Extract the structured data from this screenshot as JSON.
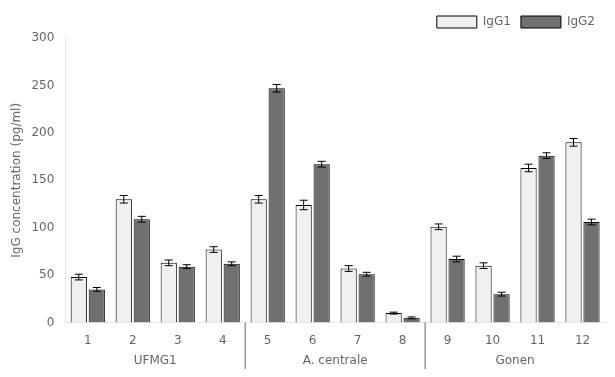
{
  "chart_data": {
    "type": "bar",
    "categories": [
      "1",
      "2",
      "3",
      "4",
      "5",
      "6",
      "7",
      "8",
      "9",
      "10",
      "11",
      "12"
    ],
    "series": [
      {
        "name": "IgG1",
        "color": "#f0f0f0",
        "values": [
          48,
          130,
          63,
          77,
          130,
          124,
          57,
          10,
          101,
          60,
          163,
          190
        ],
        "errors": [
          3,
          4,
          3,
          3,
          4,
          5,
          3,
          1,
          3,
          3,
          4,
          4
        ]
      },
      {
        "name": "IgG2",
        "color": "#707070",
        "values": [
          35,
          109,
          59,
          62,
          247,
          167,
          51,
          5,
          67,
          30,
          176,
          106
        ],
        "errors": [
          2,
          3,
          2,
          2,
          4,
          3,
          2,
          1,
          3,
          2,
          3,
          3
        ]
      }
    ],
    "ylabel": "IgG concentration (pg/ml)",
    "ylim": [
      0,
      300
    ],
    "yticks": [
      0,
      50,
      100,
      150,
      200,
      250,
      300
    ],
    "grid": false,
    "legend": "upper right",
    "annotations": [
      {
        "text": "UFMG1",
        "categories": [
          "1",
          "2",
          "3",
          "4"
        ]
      },
      {
        "text": "A. centrale",
        "categories": [
          "5",
          "6",
          "7",
          "8"
        ]
      },
      {
        "text": "Gonen",
        "categories": [
          "9",
          "10",
          "11",
          "12"
        ]
      }
    ]
  }
}
